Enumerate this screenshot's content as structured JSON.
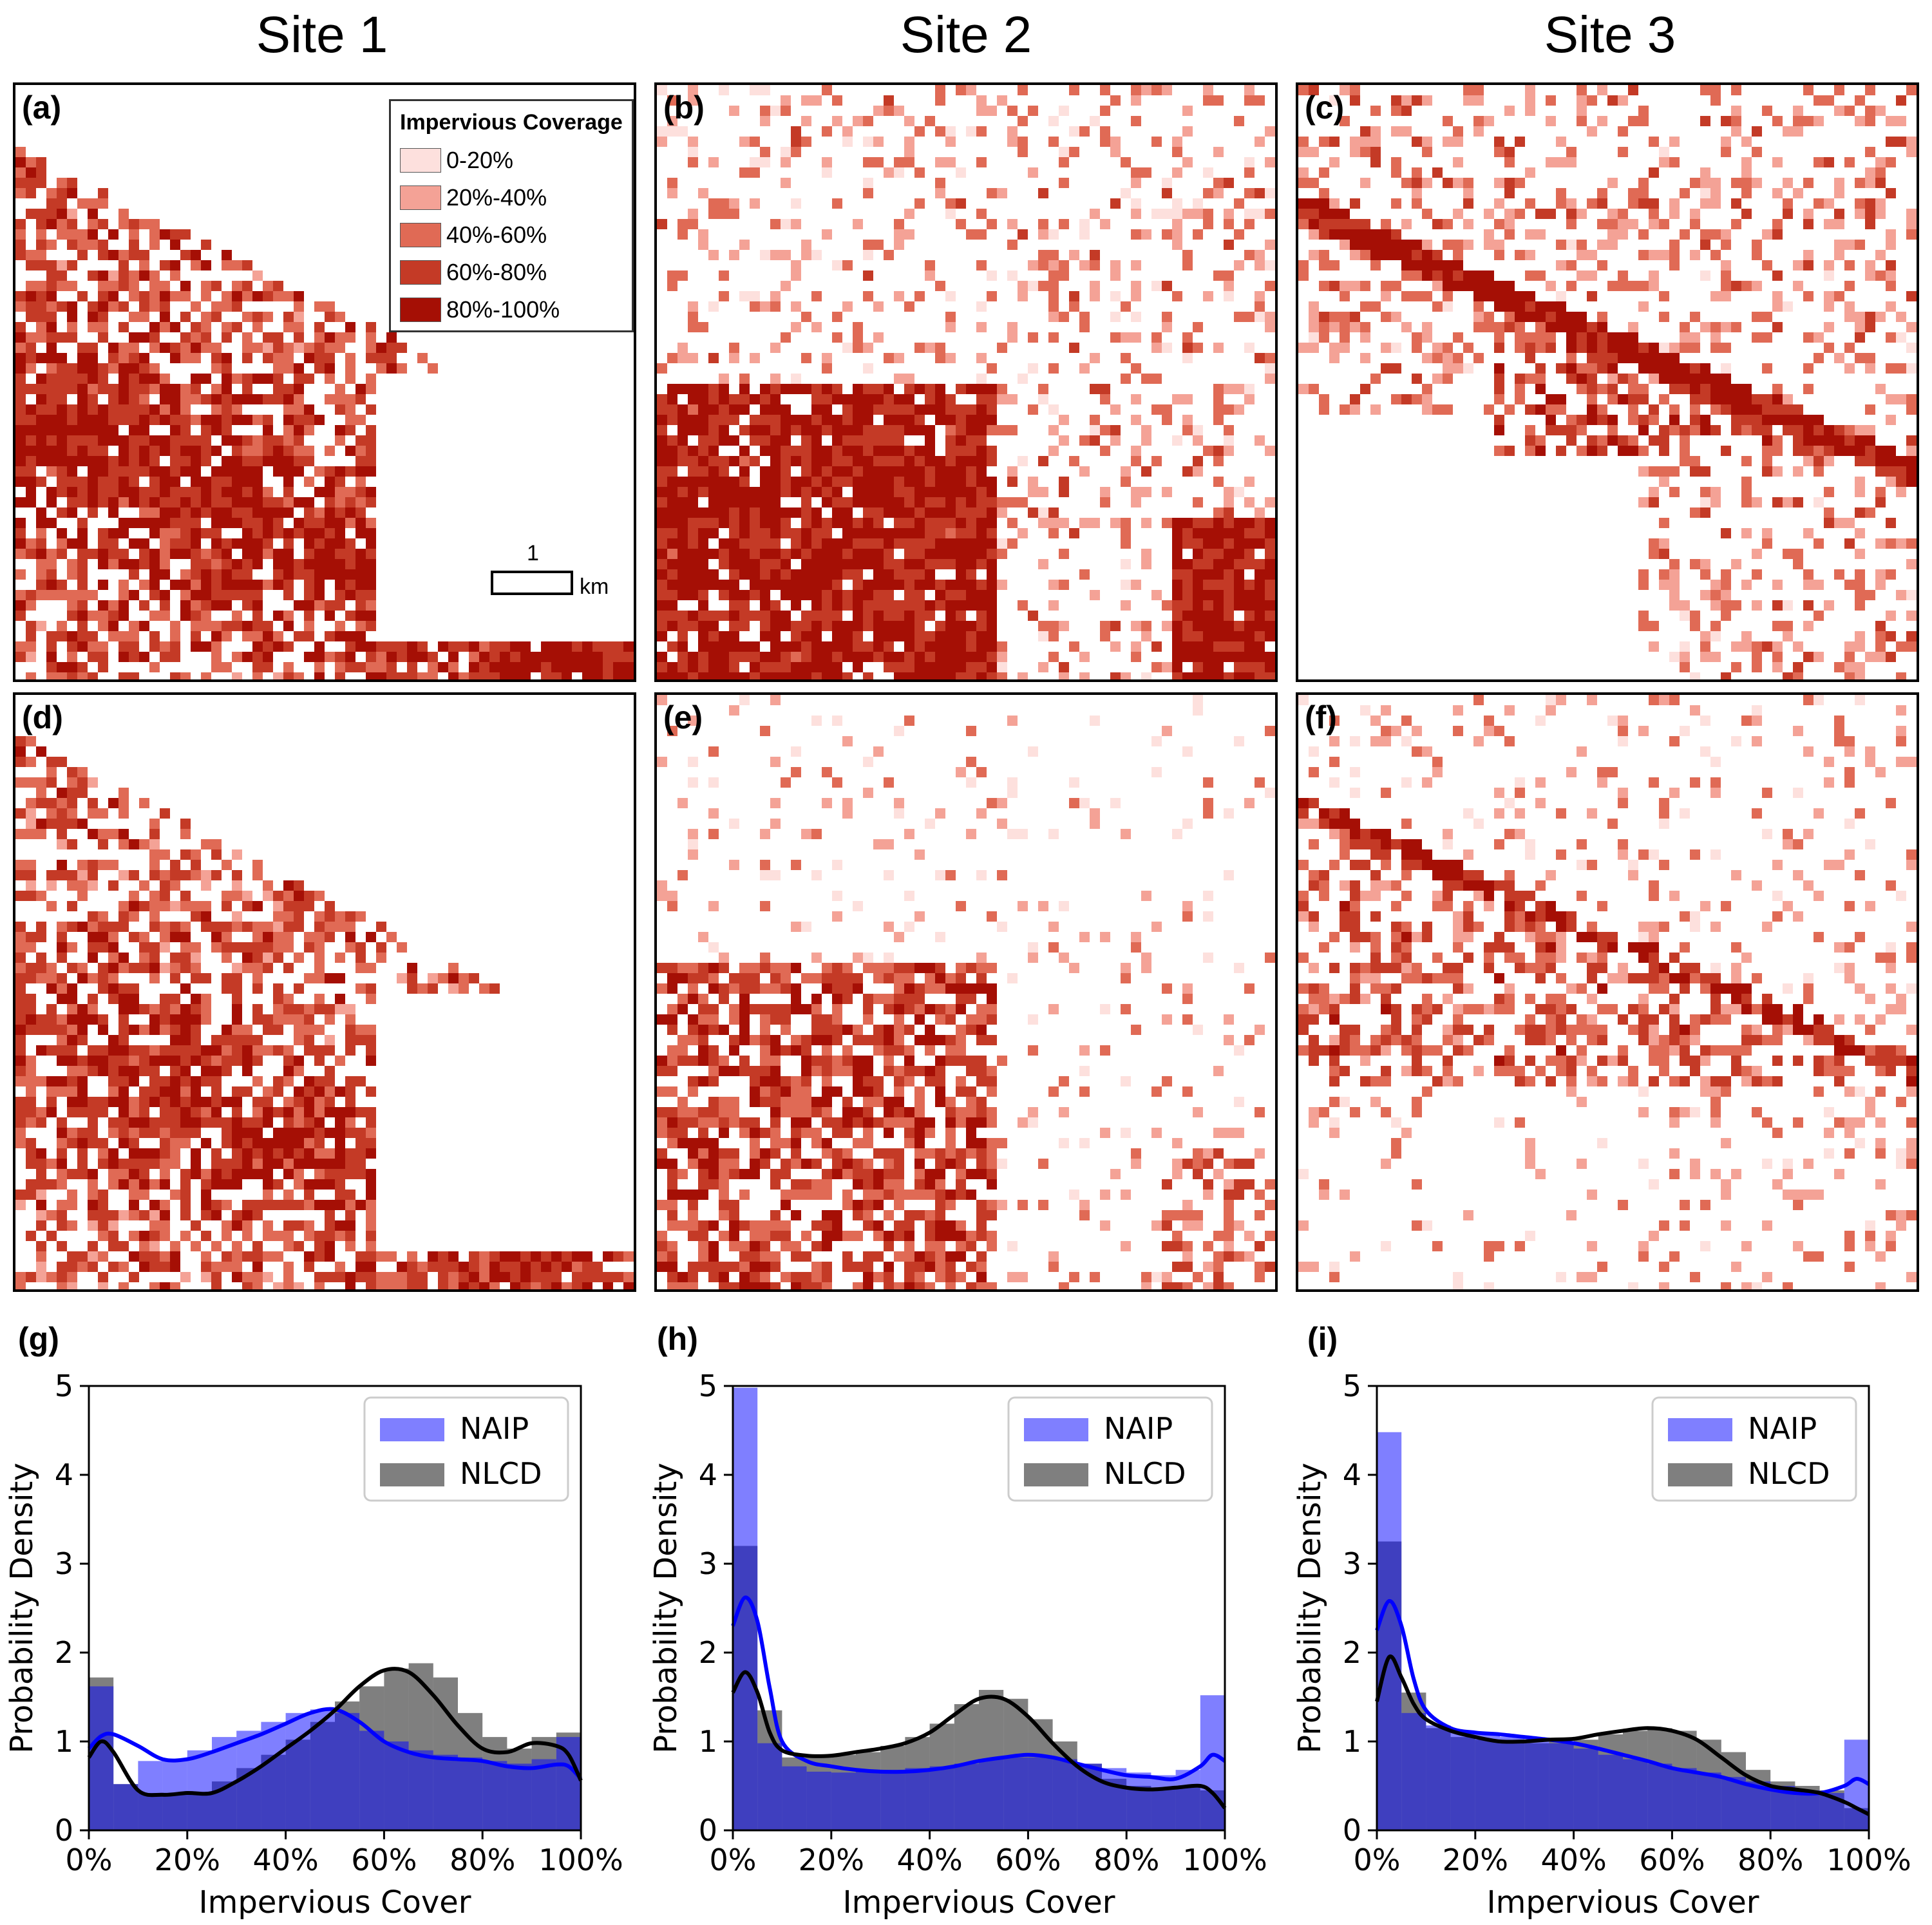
{
  "site_titles": [
    "Site 1",
    "Site 2",
    "Site 3"
  ],
  "panel_labels": [
    "(a)",
    "(b)",
    "(c)",
    "(d)",
    "(e)",
    "(f)"
  ],
  "legend": {
    "title": "Impervious Coverage",
    "items": [
      {
        "label": "0-20%",
        "color": "#fde0dd"
      },
      {
        "label": "20%-40%",
        "color": "#f4a296"
      },
      {
        "label": "40%-60%",
        "color": "#e06a55"
      },
      {
        "label": "60%-80%",
        "color": "#c43a26"
      },
      {
        "label": "80%-100%",
        "color": "#a50f05"
      }
    ]
  },
  "scalebar": {
    "value": "1",
    "unit": "km"
  },
  "chart_data": [
    {
      "label": "(g)",
      "type": "bar",
      "xlabel": "Impervious Cover",
      "ylabel": "Probability Density",
      "xlim": [
        0,
        100
      ],
      "ylim": [
        0,
        5
      ],
      "xticks": [
        "0%",
        "20%",
        "40%",
        "60%",
        "80%",
        "100%"
      ],
      "yticks": [
        "0",
        "1",
        "2",
        "3",
        "4",
        "5"
      ],
      "bin_edges": [
        0,
        5,
        10,
        15,
        20,
        25,
        30,
        35,
        40,
        45,
        50,
        55,
        60,
        65,
        70,
        75,
        80,
        85,
        90,
        95,
        100
      ],
      "legend": [
        "NAIP",
        "NLCD"
      ],
      "series": [
        {
          "name": "NAIP",
          "color": "#0000ff",
          "values": [
            1.62,
            0.52,
            0.78,
            0.78,
            0.9,
            1.05,
            1.12,
            1.22,
            1.32,
            1.36,
            1.32,
            1.12,
            1.0,
            0.9,
            0.85,
            0.82,
            0.78,
            0.75,
            0.8,
            1.05
          ],
          "kde_x": [
            0,
            2.5,
            5,
            10,
            15,
            20,
            25,
            30,
            35,
            40,
            45,
            50,
            55,
            60,
            65,
            70,
            75,
            80,
            85,
            90,
            95,
            97.5,
            100
          ],
          "kde_y": [
            0.92,
            1.06,
            1.08,
            0.95,
            0.8,
            0.8,
            0.88,
            0.98,
            1.08,
            1.2,
            1.32,
            1.36,
            1.22,
            1.0,
            0.88,
            0.82,
            0.8,
            0.78,
            0.72,
            0.7,
            0.74,
            0.72,
            0.58
          ]
        },
        {
          "name": "NLCD",
          "color": "#000000",
          "values": [
            1.72,
            0.52,
            0.42,
            0.4,
            0.42,
            0.55,
            0.7,
            0.85,
            1.02,
            1.22,
            1.45,
            1.62,
            1.82,
            1.88,
            1.72,
            1.32,
            1.05,
            0.92,
            1.05,
            1.1
          ],
          "kde_x": [
            0,
            2.5,
            5,
            10,
            15,
            20,
            25,
            30,
            35,
            40,
            45,
            50,
            55,
            60,
            65,
            70,
            75,
            80,
            85,
            90,
            95,
            97.5,
            100
          ],
          "kde_y": [
            0.82,
            1.0,
            0.88,
            0.45,
            0.4,
            0.42,
            0.42,
            0.55,
            0.72,
            0.92,
            1.12,
            1.35,
            1.62,
            1.8,
            1.78,
            1.52,
            1.18,
            0.92,
            0.88,
            0.98,
            0.95,
            0.85,
            0.56
          ]
        }
      ]
    },
    {
      "label": "(h)",
      "type": "bar",
      "xlabel": "Impervious Cover",
      "ylabel": "Probability Density",
      "xlim": [
        0,
        100
      ],
      "ylim": [
        0,
        5
      ],
      "xticks": [
        "0%",
        "20%",
        "40%",
        "60%",
        "80%",
        "100%"
      ],
      "yticks": [
        "0",
        "1",
        "2",
        "3",
        "4",
        "5"
      ],
      "bin_edges": [
        0,
        5,
        10,
        15,
        20,
        25,
        30,
        35,
        40,
        45,
        50,
        55,
        60,
        65,
        70,
        75,
        80,
        85,
        90,
        95,
        100
      ],
      "legend": [
        "NAIP",
        "NLCD"
      ],
      "series": [
        {
          "name": "NAIP",
          "color": "#0000ff",
          "values": [
            4.98,
            0.98,
            0.72,
            0.66,
            0.65,
            0.66,
            0.68,
            0.7,
            0.72,
            0.75,
            0.8,
            0.82,
            0.82,
            0.8,
            0.75,
            0.7,
            0.65,
            0.62,
            0.68,
            1.52
          ],
          "kde_x": [
            0,
            2.5,
            5,
            7.5,
            10,
            15,
            20,
            25,
            30,
            35,
            40,
            45,
            50,
            55,
            60,
            65,
            70,
            75,
            80,
            85,
            90,
            95,
            97.5,
            100
          ],
          "kde_y": [
            2.3,
            2.62,
            2.35,
            1.6,
            1.0,
            0.78,
            0.72,
            0.68,
            0.66,
            0.66,
            0.68,
            0.72,
            0.78,
            0.82,
            0.85,
            0.82,
            0.75,
            0.68,
            0.62,
            0.6,
            0.58,
            0.72,
            0.85,
            0.78
          ]
        },
        {
          "name": "NLCD",
          "color": "#000000",
          "values": [
            3.2,
            1.35,
            0.82,
            0.82,
            0.85,
            0.88,
            0.95,
            1.05,
            1.2,
            1.42,
            1.58,
            1.48,
            1.25,
            1.0,
            0.75,
            0.58,
            0.5,
            0.48,
            0.48,
            0.45
          ],
          "kde_x": [
            0,
            2.5,
            5,
            7.5,
            10,
            15,
            20,
            25,
            30,
            35,
            40,
            45,
            50,
            55,
            60,
            65,
            70,
            75,
            80,
            85,
            90,
            95,
            97.5,
            100
          ],
          "kde_y": [
            1.55,
            1.78,
            1.55,
            1.1,
            0.9,
            0.84,
            0.84,
            0.88,
            0.92,
            0.98,
            1.1,
            1.3,
            1.48,
            1.48,
            1.28,
            0.98,
            0.72,
            0.55,
            0.48,
            0.46,
            0.48,
            0.5,
            0.42,
            0.25
          ]
        }
      ]
    },
    {
      "label": "(i)",
      "type": "bar",
      "xlabel": "Impervious Cover",
      "ylabel": "Probability Density",
      "xlim": [
        0,
        100
      ],
      "ylim": [
        0,
        5
      ],
      "xticks": [
        "0%",
        "20%",
        "40%",
        "60%",
        "80%",
        "100%"
      ],
      "yticks": [
        "0",
        "1",
        "2",
        "3",
        "4",
        "5"
      ],
      "bin_edges": [
        0,
        5,
        10,
        15,
        20,
        25,
        30,
        35,
        40,
        45,
        50,
        55,
        60,
        65,
        70,
        75,
        80,
        85,
        90,
        95,
        100
      ],
      "legend": [
        "NAIP",
        "NLCD"
      ],
      "series": [
        {
          "name": "NAIP",
          "color": "#0000ff",
          "values": [
            4.48,
            1.32,
            1.18,
            1.1,
            1.08,
            1.05,
            1.02,
            0.98,
            0.92,
            0.85,
            0.8,
            0.75,
            0.7,
            0.65,
            0.6,
            0.55,
            0.5,
            0.45,
            0.42,
            1.02
          ],
          "kde_x": [
            0,
            2.5,
            5,
            7.5,
            10,
            15,
            20,
            25,
            30,
            35,
            40,
            45,
            50,
            55,
            60,
            65,
            70,
            75,
            80,
            85,
            90,
            95,
            97.5,
            100
          ],
          "kde_y": [
            2.25,
            2.58,
            2.3,
            1.7,
            1.35,
            1.15,
            1.1,
            1.08,
            1.05,
            1.02,
            0.98,
            0.92,
            0.85,
            0.78,
            0.7,
            0.65,
            0.6,
            0.52,
            0.46,
            0.42,
            0.42,
            0.5,
            0.58,
            0.52
          ]
        },
        {
          "name": "NLCD",
          "color": "#000000",
          "values": [
            3.25,
            1.55,
            1.15,
            1.05,
            1.02,
            1.0,
            0.98,
            1.0,
            1.02,
            1.08,
            1.12,
            1.15,
            1.12,
            1.02,
            0.88,
            0.68,
            0.55,
            0.5,
            0.45,
            0.25
          ],
          "kde_x": [
            0,
            2.5,
            5,
            7.5,
            10,
            15,
            20,
            25,
            30,
            35,
            40,
            45,
            50,
            55,
            60,
            65,
            70,
            75,
            80,
            85,
            90,
            95,
            97.5,
            100
          ],
          "kde_y": [
            1.45,
            1.95,
            1.72,
            1.42,
            1.25,
            1.12,
            1.05,
            1.0,
            1.0,
            1.02,
            1.03,
            1.08,
            1.12,
            1.15,
            1.12,
            1.02,
            0.82,
            0.62,
            0.5,
            0.46,
            0.42,
            0.32,
            0.25,
            0.18
          ]
        }
      ]
    }
  ]
}
